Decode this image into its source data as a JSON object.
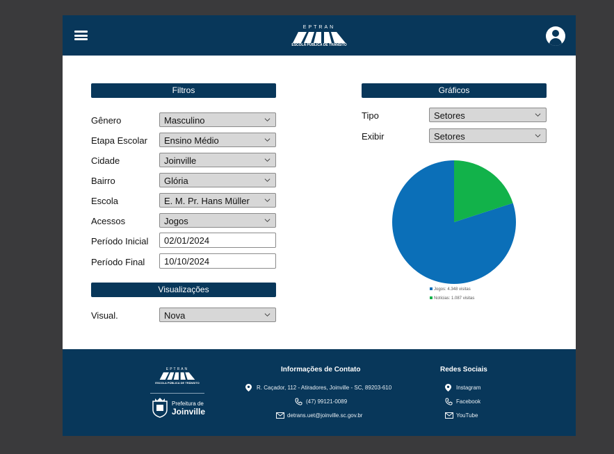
{
  "header": {
    "brand": "EPTRAN",
    "brand_subtitle": "ESCOLA PÚBLICA DE TRÂNSITO",
    "menu_icon": "hamburger-menu-icon",
    "profile_icon": "user-circle-icon"
  },
  "filters": {
    "title": "Filtros",
    "fields": [
      {
        "label": "Gênero",
        "value": "Masculino"
      },
      {
        "label": "Etapa Escolar",
        "value": "Ensino Médio"
      },
      {
        "label": "Cidade",
        "value": "Joinville"
      },
      {
        "label": "Bairro",
        "value": "Glória"
      },
      {
        "label": "Escola",
        "value": "E. M. Pr. Hans Müller"
      },
      {
        "label": "Acessos",
        "value": "Jogos"
      }
    ],
    "date_fields": [
      {
        "label": "Período Inicial",
        "value": "02/01/2024"
      },
      {
        "label": "Período Final",
        "value": "10/10/2024"
      }
    ]
  },
  "visualizations": {
    "title": "Visualizações",
    "field": {
      "label": "Visual.",
      "value": "Nova"
    }
  },
  "charts": {
    "title": "Gráficos",
    "fields": [
      {
        "label": "Tipo",
        "value": "Setores"
      },
      {
        "label": "Exibir",
        "value": "Setores"
      }
    ]
  },
  "chart_data": {
    "type": "pie",
    "categories": [
      "Jogos",
      "Notícias"
    ],
    "values": [
      4348,
      1087
    ],
    "legend": [
      "Jogos: 4.348 visitas",
      "Notícias: 1.087 visitas"
    ],
    "colors": [
      "#0b6fb8",
      "#12b24a"
    ],
    "legend_position": "bottom"
  },
  "footer": {
    "brand": "EPTRAN",
    "brand_subtitle": "ESCOLA PÚBLICA DE TRÂNSITO",
    "prefeitura_line1": "Prefeitura de",
    "prefeitura_line2": "Joinville",
    "contact_title": "Informações de Contato",
    "address": "R. Caçador, 112 - Atiradores, Joinville - SC, 89203-610",
    "phone": "(47) 99121-0089",
    "email": "detrans.uet@joinville.sc.gov.br",
    "social_title": "Redes Sociais",
    "social": [
      "Instagram",
      "Facebook",
      "YouTube"
    ]
  },
  "colors": {
    "navy": "#08375a",
    "background": "#3a3a3c",
    "select_bg": "#d7d7d7"
  }
}
